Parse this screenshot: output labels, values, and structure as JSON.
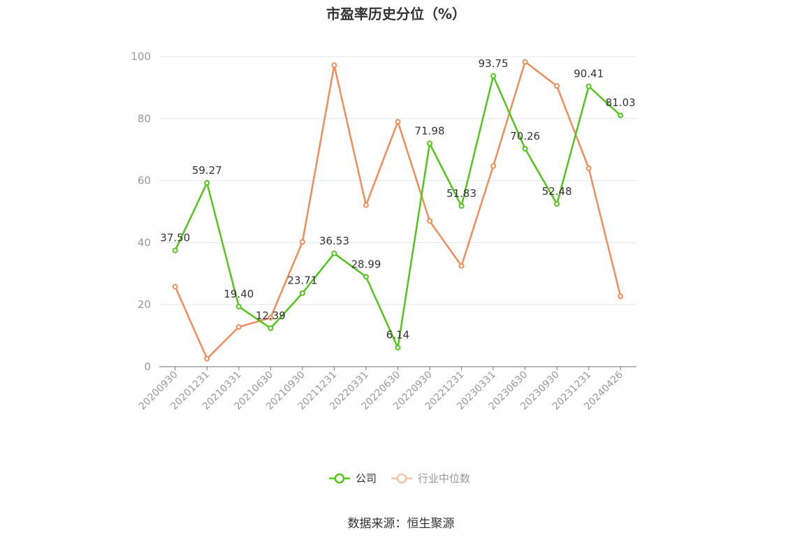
{
  "chart_data": {
    "type": "line",
    "title": "市盈率历史分位（%）",
    "categories": [
      "20200930",
      "20201231",
      "20210331",
      "20210630",
      "20210930",
      "20211231",
      "20220331",
      "20220630",
      "20220930",
      "20221231",
      "20230331",
      "20230630",
      "20230930",
      "20231231",
      "20240426"
    ],
    "ylim": [
      0,
      100
    ],
    "yticks": [
      0,
      20,
      40,
      60,
      80,
      100
    ],
    "grid": true,
    "legend_position": "bottom",
    "series": [
      {
        "name": "公司",
        "color": "#52c41a",
        "values": [
          37.5,
          59.27,
          19.4,
          12.39,
          23.71,
          36.53,
          28.99,
          6.14,
          71.98,
          51.83,
          93.75,
          70.26,
          52.48,
          90.41,
          81.03
        ],
        "labels": [
          "37.50",
          "59.27",
          "19.40",
          "12.39",
          "23.71",
          "36.53",
          "28.99",
          "6.14",
          "71.98",
          "51.83",
          "93.75",
          "70.26",
          "52.48",
          "90.41",
          "81.03"
        ]
      },
      {
        "name": "行业中位数",
        "color": "#f08c5a",
        "values": [
          25.8,
          2.6,
          12.8,
          15.8,
          40.2,
          97.2,
          52.1,
          79.0,
          47.0,
          32.5,
          64.7,
          98.3,
          90.5,
          64.0,
          22.7
        ]
      }
    ],
    "source": "数据来源：恒生聚源"
  }
}
